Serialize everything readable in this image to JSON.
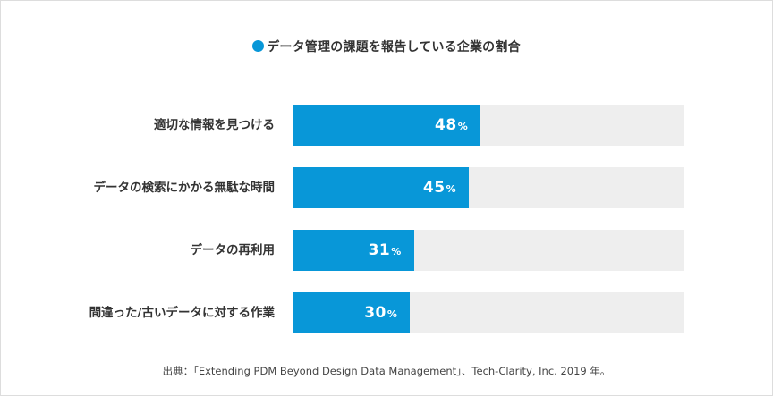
{
  "colors": {
    "bar": "#0897d8",
    "track": "#eeeeee",
    "title_dot": "#0897d8"
  },
  "title": "データ管理の課題を報告している企業の割合",
  "rows": [
    {
      "label": "適切な情報を見つける",
      "value": 48,
      "value_text": "48",
      "unit": "%"
    },
    {
      "label": "データの検索にかかる無駄な時間",
      "value": 45,
      "value_text": "45",
      "unit": "%"
    },
    {
      "label": "データの再利用",
      "value": 31,
      "value_text": "31",
      "unit": "%"
    },
    {
      "label": "間違った/古いデータに対する作業",
      "value": 30,
      "value_text": "30",
      "unit": "%"
    }
  ],
  "source": "出典：「Extending PDM Beyond Design Data Management」、Tech-Clarity, Inc. 2019 年。",
  "chart_data": {
    "type": "bar",
    "orientation": "horizontal",
    "title": "データ管理の課題を報告している企業の割合",
    "categories": [
      "適切な情報を見つける",
      "データの検索にかかる無駄な時間",
      "データの再利用",
      "間違った/古いデータに対する作業"
    ],
    "values": [
      48,
      45,
      31,
      30
    ],
    "unit": "%",
    "xlim": [
      0,
      100
    ],
    "xlabel": "",
    "ylabel": "",
    "grid": false,
    "legend": false,
    "data_labels": true,
    "source": "出典：「Extending PDM Beyond Design Data Management」、Tech-Clarity, Inc. 2019 年。"
  }
}
